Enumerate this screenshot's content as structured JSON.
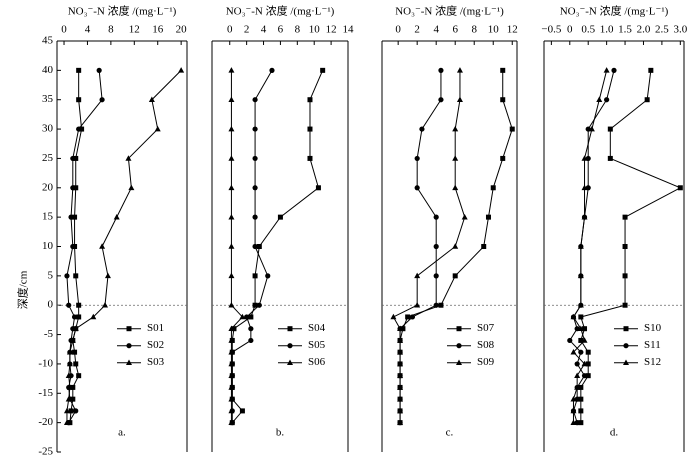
{
  "chart_data": [
    {
      "type": "line",
      "title": "NO₃⁻-N 浓度 /(mg·L⁻¹)",
      "panel_label": "a.",
      "ylabel": "深度/cm",
      "ylim": [
        -25,
        45
      ],
      "yticks": [
        -25,
        -20,
        -15,
        -10,
        -5,
        0,
        5,
        10,
        15,
        20,
        25,
        30,
        35,
        40,
        45
      ],
      "xlim": [
        -1.2,
        21
      ],
      "xticks": [
        0,
        4,
        8,
        12,
        16,
        20
      ],
      "zero_line": true,
      "legend": "lower right",
      "depths": [
        40,
        35,
        30,
        25,
        20,
        15,
        10,
        5,
        0,
        -2,
        -4,
        -6,
        -8,
        -10,
        -12,
        -14,
        -16,
        -18,
        -20
      ],
      "series": [
        {
          "name": "S01",
          "color": "#000000",
          "marker": "square",
          "values": [
            2.5,
            2.5,
            3,
            2,
            2,
            1.8,
            1.8,
            2,
            2.5,
            2.5,
            2,
            1.5,
            1.8,
            2,
            2.5,
            1.5,
            1.5,
            1.2,
            1
          ]
        },
        {
          "name": "S02",
          "color": "#000000",
          "marker": "circle",
          "values": [
            6,
            6.5,
            2.5,
            1.5,
            1.5,
            1.2,
            1.5,
            0.5,
            0.8,
            1.8,
            1.5,
            1.2,
            1,
            1,
            1.2,
            0.8,
            1,
            2,
            0.8
          ]
        },
        {
          "name": "S03",
          "color": "#000000",
          "marker": "triangle",
          "values": [
            20,
            15,
            16,
            11,
            11.5,
            9,
            6.5,
            7.5,
            7,
            5,
            2,
            1.5,
            1,
            1,
            0.8,
            1,
            0.8,
            0.5,
            0.5
          ]
        }
      ]
    },
    {
      "type": "line",
      "title": "NO₃⁻-N 浓度 /(mg·L⁻¹)",
      "panel_label": "b.",
      "xlim": [
        -2.1,
        14
      ],
      "xticks": [
        0,
        2,
        4,
        6,
        8,
        10,
        12,
        14
      ],
      "zero_line": true,
      "legend": "lower right",
      "depths": [
        40,
        35,
        30,
        25,
        20,
        15,
        10,
        5,
        0,
        -2,
        -4,
        -6,
        -8,
        -10,
        -12,
        -14,
        -16,
        -18,
        -20
      ],
      "series": [
        {
          "name": "S04",
          "color": "#000000",
          "marker": "square",
          "values": [
            11,
            9.5,
            9.5,
            9.5,
            10.5,
            6,
            3.5,
            3,
            3,
            2.5,
            0.5,
            0.3,
            0.3,
            0.3,
            0.3,
            0.3,
            0.3,
            1.5,
            0.3
          ]
        },
        {
          "name": "S05",
          "color": "#000000",
          "marker": "circle",
          "values": [
            5,
            3,
            3,
            3,
            3,
            3,
            3,
            4.5,
            3.5,
            2,
            2.5,
            2.5,
            0.3,
            0.3,
            0.3,
            0.3,
            0.3,
            0.3,
            0.3
          ]
        },
        {
          "name": "S06",
          "color": "#000000",
          "marker": "triangle",
          "values": [
            0.2,
            0.2,
            0.2,
            0.2,
            0.2,
            0.2,
            0.2,
            0.2,
            0.2,
            1.5,
            0.2,
            0.2,
            0.2,
            0.2,
            0.2,
            0.2,
            0.2,
            0.2,
            0.2
          ]
        }
      ]
    },
    {
      "type": "line",
      "title": "NO₃⁻-N 浓度 /(mg·L⁻¹)",
      "panel_label": "c.",
      "xlim": [
        -1.7,
        12.5
      ],
      "xticks": [
        0,
        2,
        4,
        6,
        8,
        10,
        12
      ],
      "zero_line": true,
      "legend": "lower right",
      "depths": [
        40,
        35,
        30,
        25,
        20,
        15,
        10,
        5,
        0,
        -2,
        -4,
        -6,
        -8,
        -10,
        -12,
        -14,
        -16,
        -18,
        -20
      ],
      "series": [
        {
          "name": "S07",
          "color": "#000000",
          "marker": "square",
          "values": [
            11,
            11,
            12,
            11,
            10,
            9.5,
            9,
            6,
            4.5,
            1,
            0.5,
            0.2,
            0.2,
            0.2,
            0.2,
            0.2,
            0.2,
            0.2,
            0.2
          ]
        },
        {
          "name": "S08",
          "color": "#000000",
          "marker": "circle",
          "values": [
            4.5,
            4.5,
            2.5,
            2,
            2,
            4,
            4,
            4,
            4,
            1.5,
            0.2,
            0.2,
            0.2,
            0.2,
            0.2,
            0.2,
            0.2,
            0.2,
            0.2
          ]
        },
        {
          "name": "S09",
          "color": "#000000",
          "marker": "triangle",
          "values": [
            6.5,
            6.5,
            6,
            6,
            6,
            7,
            6,
            2,
            2,
            -0.5,
            0.2,
            0.2,
            0.2,
            0.2,
            0.2,
            0.2,
            0.2,
            0.2,
            0.2
          ]
        }
      ]
    },
    {
      "type": "line",
      "title": "NO₃⁻-N 浓度 /(mg·L⁻¹)",
      "panel_label": "d.",
      "xlim": [
        -0.7,
        3.1
      ],
      "xticks": [
        {
          "value": -0.5,
          "label": "−0.5"
        },
        0,
        0.5,
        {
          "value": 1,
          "label": "1.0"
        },
        1.5,
        {
          "value": 2,
          "label": "2.0"
        },
        2.5,
        {
          "value": 3,
          "label": "3.0"
        }
      ],
      "zero_line": true,
      "legend": "lower right",
      "depths": [
        40,
        35,
        30,
        25,
        20,
        15,
        10,
        5,
        0,
        -2,
        -4,
        -6,
        -8,
        -10,
        -12,
        -14,
        -16,
        -18,
        -20
      ],
      "series": [
        {
          "name": "S10",
          "color": "#000000",
          "marker": "square",
          "values": [
            2.2,
            2.1,
            1.1,
            1.1,
            3,
            1.5,
            1.5,
            1.5,
            1.5,
            0.3,
            0.4,
            0.3,
            0.5,
            0.5,
            0.5,
            0.3,
            0.3,
            0.3,
            0.3
          ]
        },
        {
          "name": "S11",
          "color": "#000000",
          "marker": "circle",
          "values": [
            1.2,
            1,
            0.5,
            0.5,
            0.5,
            0.4,
            0.3,
            0.3,
            0.3,
            0.1,
            0.2,
            0,
            0.3,
            0.2,
            0.4,
            0.2,
            0.2,
            0.1,
            0.2
          ]
        },
        {
          "name": "S12",
          "color": "#000000",
          "marker": "triangle",
          "values": [
            1,
            0.8,
            0.6,
            0.4,
            0.4,
            0.4,
            0.3,
            0.3,
            0.3,
            0.1,
            0.3,
            0.4,
            0.1,
            0.4,
            0.2,
            0.2,
            0.1,
            0.1,
            0.1
          ]
        }
      ]
    }
  ]
}
